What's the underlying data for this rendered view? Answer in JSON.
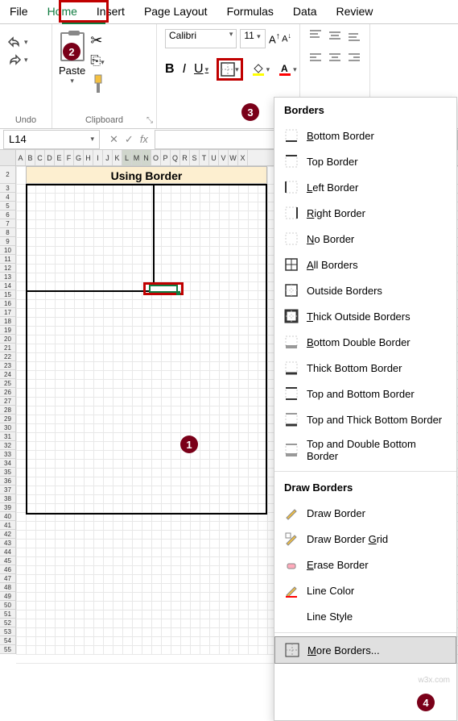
{
  "tabs": [
    "File",
    "Home",
    "Insert",
    "Page Layout",
    "Formulas",
    "Data",
    "Review"
  ],
  "active_tab": "Home",
  "groups": {
    "undo": "Undo",
    "clipboard": "Clipboard",
    "paste": "Paste"
  },
  "font": {
    "name": "Calibri",
    "size": "11"
  },
  "namebox": "L14",
  "title_cell": "Using Border",
  "columns": [
    "A",
    "B",
    "C",
    "D",
    "E",
    "F",
    "G",
    "H",
    "I",
    "J",
    "K",
    "L",
    "M",
    "N",
    "O",
    "P",
    "Q",
    "R",
    "S",
    "T",
    "U",
    "V",
    "W",
    "X"
  ],
  "selected_cols": [
    "L",
    "M",
    "N"
  ],
  "rows_first": "",
  "menu": {
    "h1": "Borders",
    "h2": "Draw Borders",
    "items": [
      {
        "key": "bottom",
        "label": "Bottom Border",
        "u": "B"
      },
      {
        "key": "top",
        "label": "Top Border",
        "u": "P"
      },
      {
        "key": "left",
        "label": "Left Border",
        "u": "L"
      },
      {
        "key": "right",
        "label": "Right Border",
        "u": "R"
      },
      {
        "key": "no",
        "label": "No Border",
        "u": "N"
      },
      {
        "key": "all",
        "label": "All Borders",
        "u": "A"
      },
      {
        "key": "outside",
        "label": "Outside Borders",
        "u": "S"
      },
      {
        "key": "thick",
        "label": "Thick Outside Borders",
        "u": "T"
      },
      {
        "key": "bdouble",
        "label": "Bottom Double Border",
        "u": "B"
      },
      {
        "key": "thickb",
        "label": "Thick Bottom Border",
        "u": "H"
      },
      {
        "key": "topbot",
        "label": "Top and Bottom Border",
        "u": "D"
      },
      {
        "key": "topthick",
        "label": "Top and Thick Bottom Border",
        "u": "C"
      },
      {
        "key": "topdbl",
        "label": "Top and Double Bottom Border",
        "u": "U"
      }
    ],
    "draw": [
      {
        "key": "drawb",
        "label": "Draw Border",
        "u": "W"
      },
      {
        "key": "drawg",
        "label": "Draw Border Grid",
        "u": "G"
      },
      {
        "key": "erase",
        "label": "Erase Border",
        "u": "E"
      },
      {
        "key": "lcolor",
        "label": "Line Color",
        "u": "I"
      },
      {
        "key": "lstyle",
        "label": "Line Style",
        "u": "Y"
      }
    ],
    "more": "More Borders..."
  },
  "callouts": {
    "c1": "1",
    "c2": "2",
    "c3": "3",
    "c4": "4"
  },
  "colors": {
    "highlight": "#c00000",
    "callout_bg": "#7a0019",
    "excel_green": "#107c41",
    "title_bg": "#fdefd0"
  },
  "watermark": "w3x.com"
}
